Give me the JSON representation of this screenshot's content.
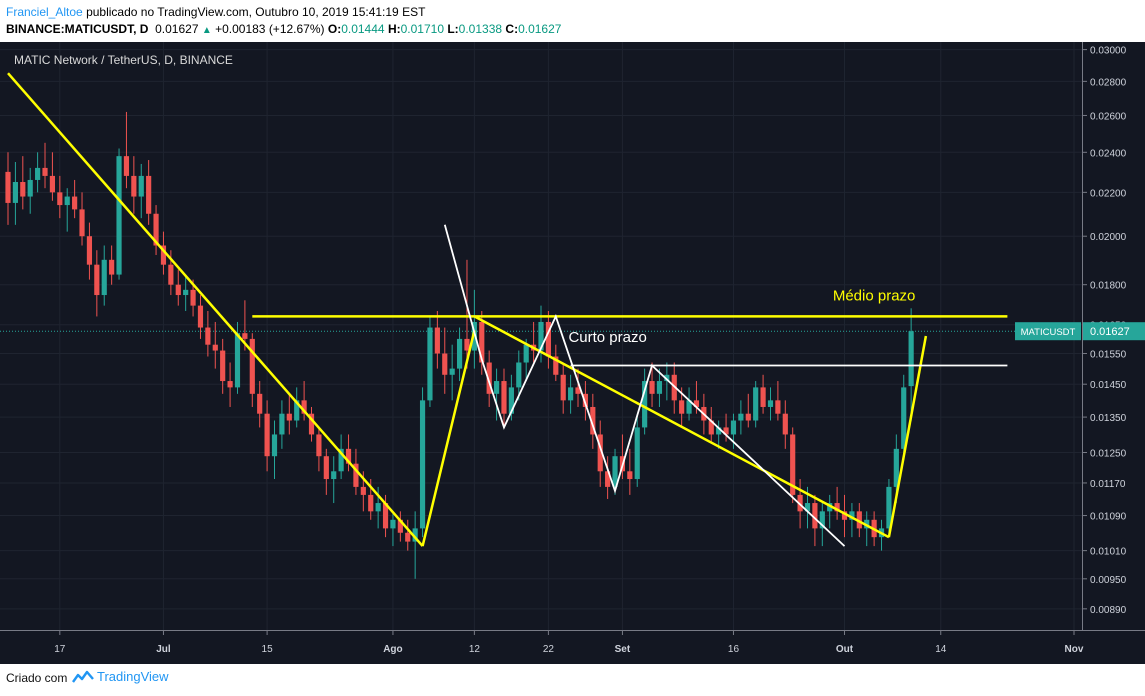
{
  "header": {
    "author": "Franciel_Altoe",
    "published": "publicado no TradingView.com, Outubro 10, 2019 15:41:19 EST",
    "symbol": "BINANCE:MATICUSDT, D",
    "price": "0.01627",
    "change": "+0.00183 (+12.67%)",
    "o_label": "O:",
    "o_value": "0.01444",
    "h_label": "H:",
    "h_value": "0.01710",
    "l_label": "L:",
    "l_value": "0.01338",
    "c_label": "C:",
    "c_value": "0.01627"
  },
  "footer": {
    "created_with": "Criado com",
    "brand": "TradingView"
  },
  "colors": {
    "background": "#131722",
    "up": "#26a69a",
    "down": "#ef5350",
    "yellow_line": "#ffff00",
    "white_line": "#ffffff",
    "price_label_bg": "#26a69a"
  },
  "chart_data": {
    "type": "candlestick",
    "title": "MATIC Network / TetherUS, D, BINANCE",
    "y_scale": "log",
    "y_range": [
      0.0085,
      0.0305
    ],
    "y_ticks": [
      "0.03000",
      "0.02800",
      "0.02600",
      "0.02400",
      "0.02200",
      "0.02000",
      "0.01800",
      "0.01650",
      "0.01550",
      "0.01450",
      "0.01350",
      "0.01250",
      "0.01170",
      "0.01090",
      "0.01010",
      "0.00950",
      "0.00890"
    ],
    "x_ticks": [
      {
        "label": "17",
        "date": "2019-06-17",
        "major": false
      },
      {
        "label": "Jul",
        "date": "2019-07-01",
        "major": true
      },
      {
        "label": "15",
        "date": "2019-07-15",
        "major": false
      },
      {
        "label": "Ago",
        "date": "2019-08-01",
        "major": true
      },
      {
        "label": "12",
        "date": "2019-08-12",
        "major": false
      },
      {
        "label": "22",
        "date": "2019-08-22",
        "major": false
      },
      {
        "label": "Set",
        "date": "2019-09-01",
        "major": true
      },
      {
        "label": "16",
        "date": "2019-09-16",
        "major": false
      },
      {
        "label": "Out",
        "date": "2019-10-01",
        "major": true
      },
      {
        "label": "14",
        "date": "2019-10-14",
        "major": false
      },
      {
        "label": "Nov",
        "date": "2019-11-01",
        "major": true
      }
    ],
    "x_range": [
      "2019-06-10",
      "2019-11-01"
    ],
    "last_price": {
      "label": "MATICUSDT",
      "value": "0.01627",
      "number": 0.01627
    },
    "annotations": [
      {
        "text": "Médio prazo",
        "color": "#ffff00",
        "x_date": "2019-10-05",
        "y": 0.0174
      },
      {
        "text": "Curto prazo",
        "color": "#ffffff",
        "x_date": "2019-08-30",
        "y": 0.0159
      }
    ],
    "lines": [
      {
        "name": "yellow-downtrend-line",
        "color": "#ffff00",
        "width": 2.5,
        "points": [
          [
            "2019-06-10",
            0.0285
          ],
          [
            "2019-08-05",
            0.0102
          ]
        ]
      },
      {
        "name": "yellow-rally-line",
        "color": "#ffff00",
        "width": 2.5,
        "points": [
          [
            "2019-08-05",
            0.0102
          ],
          [
            "2019-08-12",
            0.0163
          ]
        ]
      },
      {
        "name": "yellow-resistance-line",
        "color": "#ffff00",
        "width": 2.5,
        "points": [
          [
            "2019-07-13",
            0.0168
          ],
          [
            "2019-10-23",
            0.0168
          ]
        ]
      },
      {
        "name": "yellow-channel-line",
        "color": "#ffff00",
        "width": 2.5,
        "points": [
          [
            "2019-08-12",
            0.0168
          ],
          [
            "2019-10-07",
            0.0104
          ]
        ]
      },
      {
        "name": "yellow-breakout-line",
        "color": "#ffff00",
        "width": 2.5,
        "points": [
          [
            "2019-10-07",
            0.0104
          ],
          [
            "2019-10-12",
            0.0161
          ]
        ]
      },
      {
        "name": "white-resistance-line",
        "color": "#ffffff",
        "width": 1.8,
        "points": [
          [
            "2019-08-25",
            0.0151
          ],
          [
            "2019-10-23",
            0.0151
          ]
        ]
      },
      {
        "name": "white-wave-line",
        "color": "#ffffff",
        "width": 1.8,
        "points": [
          [
            "2019-08-08",
            0.0205
          ],
          [
            "2019-08-13",
            0.0153
          ],
          [
            "2019-08-16",
            0.0132
          ],
          [
            "2019-08-23",
            0.0168
          ],
          [
            "2019-08-31",
            0.0115
          ],
          [
            "2019-09-05",
            0.0151
          ],
          [
            "2019-10-01",
            0.0102
          ]
        ]
      }
    ],
    "candles": [
      [
        "2019-06-10",
        0.023,
        0.024,
        0.0205,
        0.0215
      ],
      [
        "2019-06-11",
        0.0215,
        0.0235,
        0.0205,
        0.0225
      ],
      [
        "2019-06-12",
        0.0225,
        0.0238,
        0.0212,
        0.0218
      ],
      [
        "2019-06-13",
        0.0218,
        0.0232,
        0.021,
        0.0226
      ],
      [
        "2019-06-14",
        0.0226,
        0.024,
        0.022,
        0.0232
      ],
      [
        "2019-06-15",
        0.0232,
        0.0245,
        0.0222,
        0.0228
      ],
      [
        "2019-06-16",
        0.0228,
        0.024,
        0.0216,
        0.022
      ],
      [
        "2019-06-17",
        0.022,
        0.0228,
        0.0208,
        0.0214
      ],
      [
        "2019-06-18",
        0.0214,
        0.0222,
        0.0202,
        0.0218
      ],
      [
        "2019-06-19",
        0.0218,
        0.0226,
        0.0208,
        0.0212
      ],
      [
        "2019-06-20",
        0.0212,
        0.022,
        0.0196,
        0.02
      ],
      [
        "2019-06-21",
        0.02,
        0.0206,
        0.0182,
        0.0188
      ],
      [
        "2019-06-22",
        0.0188,
        0.0194,
        0.0168,
        0.0176
      ],
      [
        "2019-06-23",
        0.0176,
        0.0196,
        0.0172,
        0.019
      ],
      [
        "2019-06-24",
        0.019,
        0.0196,
        0.018,
        0.0184
      ],
      [
        "2019-06-25",
        0.0184,
        0.0242,
        0.0182,
        0.0238
      ],
      [
        "2019-06-26",
        0.0238,
        0.0262,
        0.0222,
        0.0228
      ],
      [
        "2019-06-27",
        0.0228,
        0.0238,
        0.021,
        0.0218
      ],
      [
        "2019-06-28",
        0.0218,
        0.0234,
        0.0208,
        0.0228
      ],
      [
        "2019-06-29",
        0.0228,
        0.0236,
        0.0205,
        0.021
      ],
      [
        "2019-06-30",
        0.021,
        0.0214,
        0.0192,
        0.0196
      ],
      [
        "2019-07-01",
        0.0196,
        0.0202,
        0.0184,
        0.0188
      ],
      [
        "2019-07-02",
        0.0188,
        0.0194,
        0.0176,
        0.018
      ],
      [
        "2019-07-03",
        0.018,
        0.0186,
        0.0172,
        0.0176
      ],
      [
        "2019-07-04",
        0.0176,
        0.0184,
        0.017,
        0.0178
      ],
      [
        "2019-07-05",
        0.0178,
        0.0182,
        0.0168,
        0.0172
      ],
      [
        "2019-07-06",
        0.0172,
        0.0176,
        0.016,
        0.0164
      ],
      [
        "2019-07-07",
        0.0164,
        0.017,
        0.0154,
        0.0158
      ],
      [
        "2019-07-08",
        0.0158,
        0.0166,
        0.015,
        0.0156
      ],
      [
        "2019-07-09",
        0.0156,
        0.016,
        0.0142,
        0.0146
      ],
      [
        "2019-07-10",
        0.0146,
        0.0152,
        0.0138,
        0.0144
      ],
      [
        "2019-07-11",
        0.0144,
        0.0166,
        0.0142,
        0.0162
      ],
      [
        "2019-07-12",
        0.0162,
        0.0174,
        0.0156,
        0.016
      ],
      [
        "2019-07-13",
        0.016,
        0.0162,
        0.0138,
        0.0142
      ],
      [
        "2019-07-14",
        0.0142,
        0.0146,
        0.0132,
        0.0136
      ],
      [
        "2019-07-15",
        0.0136,
        0.014,
        0.012,
        0.0124
      ],
      [
        "2019-07-16",
        0.0124,
        0.0134,
        0.0118,
        0.013
      ],
      [
        "2019-07-17",
        0.013,
        0.014,
        0.0126,
        0.0136
      ],
      [
        "2019-07-18",
        0.0136,
        0.0142,
        0.013,
        0.0134
      ],
      [
        "2019-07-19",
        0.0134,
        0.0144,
        0.0132,
        0.014
      ],
      [
        "2019-07-20",
        0.014,
        0.0146,
        0.0134,
        0.0136
      ],
      [
        "2019-07-21",
        0.0136,
        0.0138,
        0.0128,
        0.013
      ],
      [
        "2019-07-22",
        0.013,
        0.0132,
        0.012,
        0.0124
      ],
      [
        "2019-07-23",
        0.0124,
        0.0126,
        0.0114,
        0.0118
      ],
      [
        "2019-07-24",
        0.0118,
        0.0124,
        0.0112,
        0.012
      ],
      [
        "2019-07-25",
        0.012,
        0.013,
        0.0118,
        0.0126
      ],
      [
        "2019-07-26",
        0.0126,
        0.013,
        0.012,
        0.0122
      ],
      [
        "2019-07-27",
        0.0122,
        0.0126,
        0.0114,
        0.0116
      ],
      [
        "2019-07-28",
        0.0116,
        0.012,
        0.011,
        0.0114
      ],
      [
        "2019-07-29",
        0.0114,
        0.0118,
        0.0108,
        0.011
      ],
      [
        "2019-07-30",
        0.011,
        0.0116,
        0.0106,
        0.0112
      ],
      [
        "2019-07-31",
        0.0112,
        0.0114,
        0.0104,
        0.0106
      ],
      [
        "2019-08-01",
        0.0106,
        0.011,
        0.0102,
        0.0108
      ],
      [
        "2019-08-02",
        0.0108,
        0.011,
        0.0103,
        0.0105
      ],
      [
        "2019-08-03",
        0.0105,
        0.0108,
        0.0101,
        0.0103
      ],
      [
        "2019-08-04",
        0.0103,
        0.011,
        0.0095,
        0.0106
      ],
      [
        "2019-08-05",
        0.0106,
        0.0144,
        0.0104,
        0.014
      ],
      [
        "2019-08-06",
        0.014,
        0.0168,
        0.0138,
        0.0164
      ],
      [
        "2019-08-07",
        0.0164,
        0.017,
        0.015,
        0.0155
      ],
      [
        "2019-08-08",
        0.0155,
        0.0164,
        0.0142,
        0.0148
      ],
      [
        "2019-08-09",
        0.0148,
        0.0158,
        0.014,
        0.015
      ],
      [
        "2019-08-10",
        0.015,
        0.0164,
        0.0146,
        0.016
      ],
      [
        "2019-08-11",
        0.016,
        0.019,
        0.015,
        0.0156
      ],
      [
        "2019-08-12",
        0.0156,
        0.0178,
        0.015,
        0.0166
      ],
      [
        "2019-08-13",
        0.0166,
        0.017,
        0.0148,
        0.0152
      ],
      [
        "2019-08-14",
        0.0152,
        0.0156,
        0.0138,
        0.0142
      ],
      [
        "2019-08-15",
        0.0142,
        0.015,
        0.0134,
        0.0146
      ],
      [
        "2019-08-16",
        0.0146,
        0.015,
        0.0132,
        0.0136
      ],
      [
        "2019-08-17",
        0.0136,
        0.0148,
        0.0134,
        0.0144
      ],
      [
        "2019-08-18",
        0.0144,
        0.0156,
        0.014,
        0.0152
      ],
      [
        "2019-08-19",
        0.0152,
        0.016,
        0.0146,
        0.0158
      ],
      [
        "2019-08-20",
        0.0158,
        0.0166,
        0.0152,
        0.0156
      ],
      [
        "2019-08-21",
        0.0156,
        0.0172,
        0.0152,
        0.0166
      ],
      [
        "2019-08-22",
        0.0166,
        0.017,
        0.015,
        0.0154
      ],
      [
        "2019-08-23",
        0.0154,
        0.0158,
        0.0146,
        0.0148
      ],
      [
        "2019-08-24",
        0.0148,
        0.0152,
        0.0136,
        0.014
      ],
      [
        "2019-08-25",
        0.014,
        0.0148,
        0.0136,
        0.0144
      ],
      [
        "2019-08-26",
        0.0144,
        0.015,
        0.0138,
        0.0142
      ],
      [
        "2019-08-27",
        0.0142,
        0.0146,
        0.0134,
        0.0138
      ],
      [
        "2019-08-28",
        0.0138,
        0.0142,
        0.0126,
        0.013
      ],
      [
        "2019-08-29",
        0.013,
        0.0134,
        0.0116,
        0.012
      ],
      [
        "2019-08-30",
        0.012,
        0.0124,
        0.0113,
        0.0116
      ],
      [
        "2019-08-31",
        0.0116,
        0.0126,
        0.0114,
        0.0124
      ],
      [
        "2019-09-01",
        0.0124,
        0.013,
        0.0118,
        0.012
      ],
      [
        "2019-09-02",
        0.012,
        0.0126,
        0.0114,
        0.0118
      ],
      [
        "2019-09-03",
        0.0118,
        0.0136,
        0.0116,
        0.0132
      ],
      [
        "2019-09-04",
        0.0132,
        0.015,
        0.013,
        0.0146
      ],
      [
        "2019-09-05",
        0.0146,
        0.0152,
        0.0138,
        0.0142
      ],
      [
        "2019-09-06",
        0.0142,
        0.015,
        0.0138,
        0.0146
      ],
      [
        "2019-09-07",
        0.0146,
        0.0152,
        0.014,
        0.0148
      ],
      [
        "2019-09-08",
        0.0148,
        0.0152,
        0.0136,
        0.014
      ],
      [
        "2019-09-09",
        0.014,
        0.0144,
        0.0132,
        0.0136
      ],
      [
        "2019-09-10",
        0.0136,
        0.0144,
        0.0134,
        0.014
      ],
      [
        "2019-09-11",
        0.014,
        0.0146,
        0.0136,
        0.0138
      ],
      [
        "2019-09-12",
        0.0138,
        0.0142,
        0.013,
        0.0134
      ],
      [
        "2019-09-13",
        0.0134,
        0.0138,
        0.0128,
        0.013
      ],
      [
        "2019-09-14",
        0.013,
        0.0134,
        0.0126,
        0.0132
      ],
      [
        "2019-09-15",
        0.0132,
        0.0136,
        0.0128,
        0.013
      ],
      [
        "2019-09-16",
        0.013,
        0.0136,
        0.0126,
        0.0134
      ],
      [
        "2019-09-17",
        0.0134,
        0.014,
        0.013,
        0.0136
      ],
      [
        "2019-09-18",
        0.0136,
        0.0142,
        0.0132,
        0.0134
      ],
      [
        "2019-09-19",
        0.0134,
        0.0146,
        0.0132,
        0.0144
      ],
      [
        "2019-09-20",
        0.0144,
        0.0148,
        0.0136,
        0.0138
      ],
      [
        "2019-09-21",
        0.0138,
        0.0144,
        0.0134,
        0.014
      ],
      [
        "2019-09-22",
        0.014,
        0.0146,
        0.0134,
        0.0136
      ],
      [
        "2019-09-23",
        0.0136,
        0.014,
        0.0126,
        0.013
      ],
      [
        "2019-09-24",
        0.013,
        0.0132,
        0.0112,
        0.0114
      ],
      [
        "2019-09-25",
        0.0114,
        0.0118,
        0.0106,
        0.011
      ],
      [
        "2019-09-26",
        0.011,
        0.0116,
        0.0106,
        0.0112
      ],
      [
        "2019-09-27",
        0.0112,
        0.0114,
        0.0102,
        0.0106
      ],
      [
        "2019-09-28",
        0.0106,
        0.0112,
        0.0102,
        0.011
      ],
      [
        "2019-09-29",
        0.011,
        0.0114,
        0.0106,
        0.0112
      ],
      [
        "2019-09-30",
        0.0112,
        0.0116,
        0.0108,
        0.011
      ],
      [
        "2019-10-01",
        0.011,
        0.0114,
        0.0104,
        0.0108
      ],
      [
        "2019-10-02",
        0.0108,
        0.0112,
        0.0104,
        0.011
      ],
      [
        "2019-10-03",
        0.011,
        0.0112,
        0.0104,
        0.0106
      ],
      [
        "2019-10-04",
        0.0106,
        0.011,
        0.0102,
        0.0108
      ],
      [
        "2019-10-05",
        0.0108,
        0.011,
        0.0102,
        0.0104
      ],
      [
        "2019-10-06",
        0.0104,
        0.0108,
        0.0101,
        0.0106
      ],
      [
        "2019-10-07",
        0.0106,
        0.0118,
        0.0104,
        0.0116
      ],
      [
        "2019-10-08",
        0.0116,
        0.013,
        0.0112,
        0.0126
      ],
      [
        "2019-10-09",
        0.0126,
        0.0148,
        0.0124,
        0.0144
      ],
      [
        "2019-10-10",
        0.01444,
        0.0171,
        0.01338,
        0.01627
      ]
    ]
  }
}
